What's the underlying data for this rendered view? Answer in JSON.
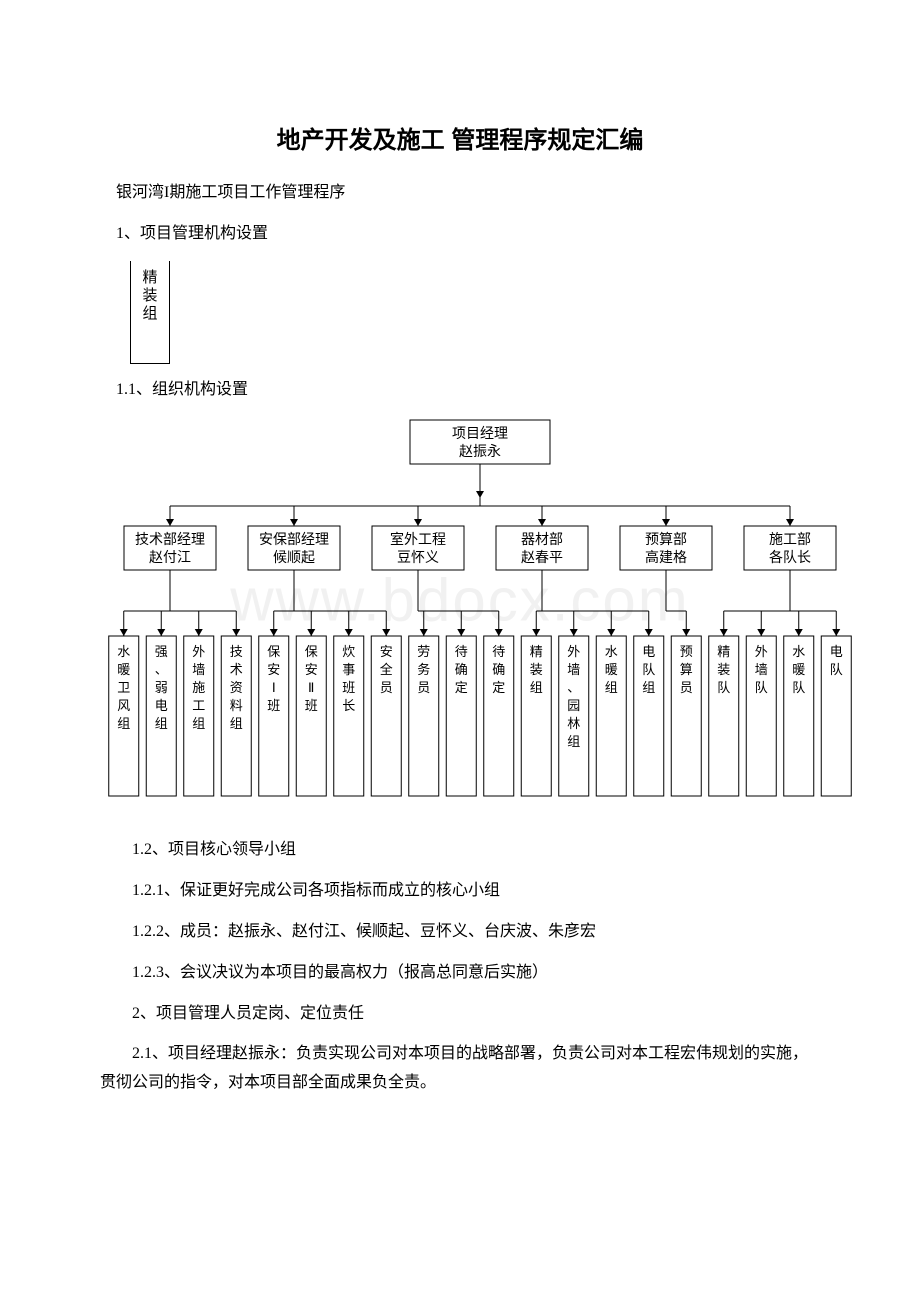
{
  "title": "地产开发及施工 管理程序规定汇编",
  "watermark": "www.bdocx.com",
  "intro_line": "银河湾I期施工项目工作管理程序",
  "section1": "1、项目管理机构设置",
  "small_box": "精装组",
  "section1_1": "1.1、组织机构设置",
  "org": {
    "top": {
      "line1": "项目经理",
      "line2": "赵振永"
    },
    "middle": [
      {
        "line1": "技术部经理",
        "line2": "赵付江"
      },
      {
        "line1": "安保部经理",
        "line2": "候顺起"
      },
      {
        "line1": "室外工程",
        "line2": "豆怀义"
      },
      {
        "line1": "器材部",
        "line2": "赵春平"
      },
      {
        "line1": "预算部",
        "line2": "高建格"
      },
      {
        "line1": "施工部",
        "line2": "各队长"
      }
    ],
    "leaves": [
      "水暖卫风组",
      "强、弱电组",
      "外墙施工组",
      "技术资料组",
      "保安Ⅰ班",
      "保安Ⅱ班",
      "炊事班长",
      "安全员",
      "劳务员",
      "待确定",
      "待确定",
      "精装组",
      "外墙、园林组",
      "水暖组",
      "电队组",
      "预算员",
      "精装队",
      "外墙队",
      "水暖队",
      "电队"
    ],
    "leaf_groups": [
      {
        "parent": 0,
        "count": 4
      },
      {
        "parent": 1,
        "count": 4
      },
      {
        "parent": 2,
        "count": 3
      },
      {
        "parent": 3,
        "count": 4
      },
      {
        "parent": 4,
        "count": 1
      },
      {
        "parent": 5,
        "count": 4
      }
    ],
    "colors": {
      "stroke": "#000000",
      "fill": "#ffffff",
      "arrow": "#000000"
    }
  },
  "paragraphs": [
    "1.2、项目核心领导小组",
    "1.2.1、保证更好完成公司各项指标而成立的核心小组",
    "1.2.2、成员：赵振永、赵付江、候顺起、豆怀义、台庆波、朱彦宏",
    "1.2.3、会议决议为本项目的最高权力（报高总同意后实施）",
    "2、项目管理人员定岗、定位责任",
    "2.1、项目经理赵振永：负责实现公司对本项目的战略部署，负责公司对本工程宏伟规划的实施，贯彻公司的指令，对本项目部全面成果负全责。"
  ]
}
